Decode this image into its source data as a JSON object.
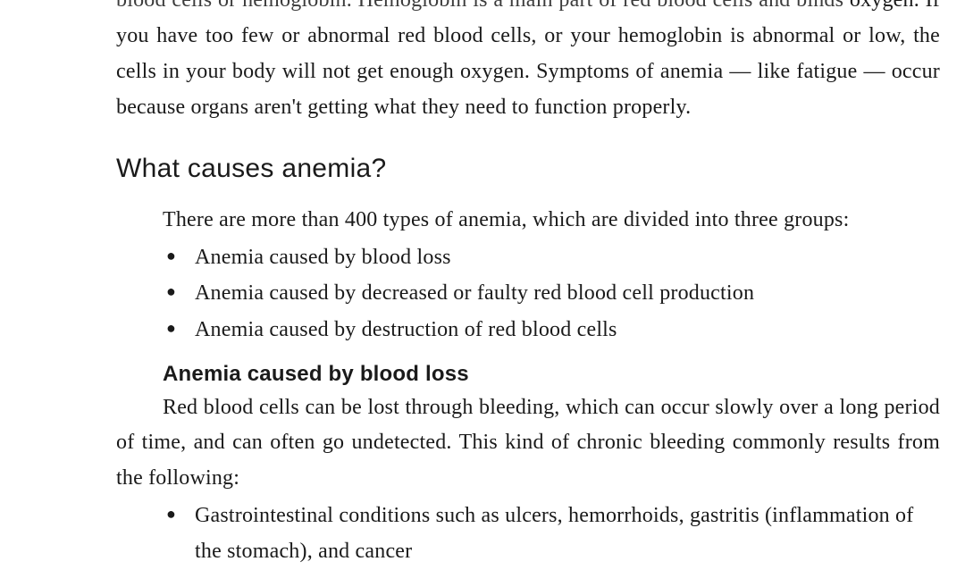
{
  "intro": {
    "cutoff_line": "blood cells or hemoglobin. Hemoglobin is a main part of red blood cells and binds",
    "paragraph": "oxygen. If you have too few or abnormal red blood cells, or your hemoglobin is abnormal or low, the cells in your body will not get enough oxygen. Symptoms of anemia — like fatigue — occur because organs aren't getting what they need to function properly."
  },
  "section": {
    "heading": "What causes anemia?",
    "types_intro": "There are more than 400 types of anemia, which are divided into three groups:",
    "bullets": [
      "Anemia caused by blood loss",
      "Anemia caused by decreased or faulty red blood cell production",
      "Anemia caused by destruction of red blood cells"
    ]
  },
  "subsection": {
    "heading": "Anemia caused by blood loss",
    "paragraph": "Red blood cells can be lost through bleeding, which can occur slowly over a long period of time, and can often go undetected. This kind of chronic bleeding commonly results from the following:",
    "bullets": [
      "Gastrointestinal conditions such as ulcers, hemorrhoids, gastritis (inflammation of the stomach), and cancer"
    ]
  },
  "styling": {
    "background_color": "#ffffff",
    "text_color": "#1a1a1a",
    "body_font": "Georgia, Times New Roman, serif",
    "heading_font": "Arial, Helvetica, sans-serif",
    "body_fontsize": 24,
    "heading_fontsize": 30,
    "subheading_fontsize": 24,
    "line_height": 1.67,
    "text_align": "justify",
    "bullet_char": "●"
  }
}
